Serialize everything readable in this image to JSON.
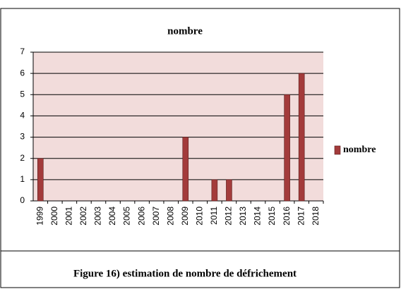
{
  "chart_data": {
    "type": "bar",
    "title": "nombre",
    "categories": [
      "1999",
      "2000",
      "2001",
      "2002",
      "2003",
      "2004",
      "2005",
      "2006",
      "2007",
      "2008",
      "2009",
      "2010",
      "2011",
      "2012",
      "2013",
      "2014",
      "2015",
      "2016",
      "2017",
      "2018"
    ],
    "series": [
      {
        "name": "nombre",
        "color": "#a33b3b",
        "values": [
          2,
          0,
          0,
          0,
          0,
          0,
          0,
          0,
          0,
          0,
          3,
          0,
          1,
          1,
          0,
          0,
          0,
          5,
          6,
          0
        ]
      }
    ],
    "ylim": [
      0,
      7
    ],
    "yticks": [
      0,
      1,
      2,
      3,
      4,
      5,
      6,
      7
    ],
    "grid": true,
    "legend": "right"
  },
  "caption": "Figure 16) estimation  de nombre de défrichement"
}
